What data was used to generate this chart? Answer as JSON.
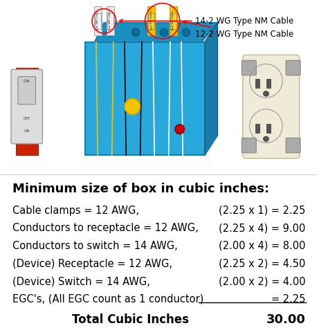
{
  "title": "Minimum size of box in cubic inches:",
  "labels_left": [
    "Cable clamps = 12 AWG,",
    "Conductors to receptacle = 12 AWG,",
    "Conductors to switch = 14 AWG,",
    "(Device) Receptacle = 12 AWG,",
    "(Device) Switch = 14 AWG,",
    "EGC's, (All EGC count as 1 conductor)"
  ],
  "labels_right": [
    "(2.25 x 1) = 2.25",
    "(2.25 x 4) = 9.00",
    "(2.00 x 4) = 8.00",
    "(2.25 x 2) = 4.50",
    "(2.00 x 2) = 4.00",
    "= 2.25"
  ],
  "total_label": "Total Cubic Inches",
  "total_value": "30.00",
  "annotation_1": "14-2 WG Type NM Cable",
  "annotation_2": "12-2 WG Type NM Cable",
  "bg_color": "#ffffff",
  "text_color": "#000000",
  "title_fontsize": 13,
  "body_fontsize": 10.5,
  "total_fontsize": 12
}
